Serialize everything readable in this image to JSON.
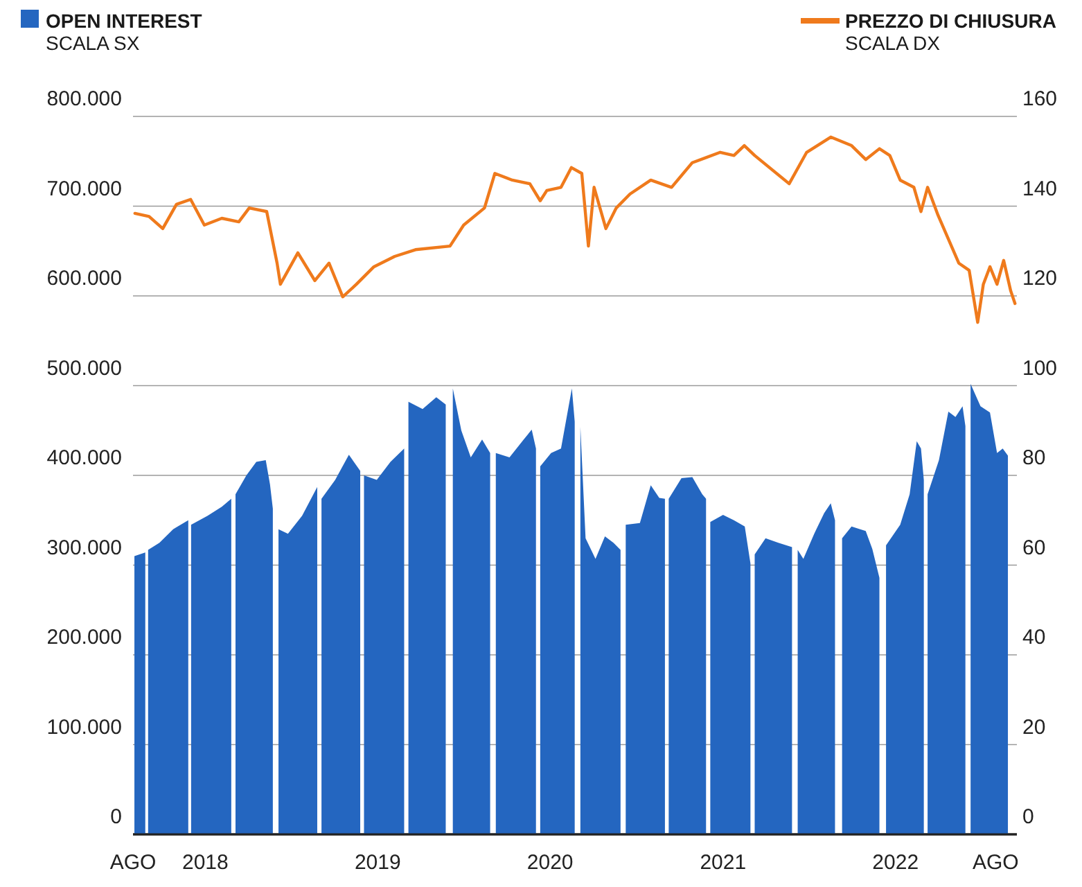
{
  "chart_data": {
    "type": "area",
    "ylabel": "SCALA SX",
    "y2label": "SCALA DX",
    "legend": "top",
    "grid": "y",
    "xlim": [
      "2017-08-01",
      "2022-09-15"
    ],
    "xticks": [
      {
        "value": "2017-08-01",
        "label": "AGO"
      },
      {
        "value": "2018-01-01",
        "label": "2018"
      },
      {
        "value": "2019-01-01",
        "label": "2019"
      },
      {
        "value": "2020-01-01",
        "label": "2020"
      },
      {
        "value": "2021-01-01",
        "label": "2021"
      },
      {
        "value": "2022-01-01",
        "label": "2022"
      },
      {
        "value": "2022-08-01",
        "label": "AGO"
      }
    ],
    "ylim": [
      0,
      800000
    ],
    "yticks": [
      0,
      {
        "value": 100000,
        "label": "100.000"
      },
      {
        "value": 200000,
        "label": "200.000"
      },
      {
        "value": 300000,
        "label": "300.000"
      },
      {
        "value": 400000,
        "label": "400.000"
      },
      {
        "value": 500000,
        "label": "500.000"
      },
      {
        "value": 600000,
        "label": "600.000"
      },
      {
        "value": 700000,
        "label": "700.000"
      },
      {
        "value": 800000,
        "label": "800.000"
      }
    ],
    "y2lim": [
      0,
      160
    ],
    "y2ticks": [
      0,
      20,
      40,
      60,
      80,
      100,
      120,
      140,
      160
    ],
    "series": [
      {
        "name": "OPEN INTEREST",
        "color": "#2466c0",
        "x": [
          "2017-08-04",
          "2017-08-27",
          "2017-08-30",
          "2017-09-02",
          "2017-09-26",
          "2017-10-25",
          "2017-11-26",
          "2017-11-29",
          "2017-12-02",
          "2018-01-06",
          "2018-02-05",
          "2018-02-25",
          "2018-02-28",
          "2018-03-06",
          "2018-03-29",
          "2018-04-19",
          "2018-05-09",
          "2018-05-18",
          "2018-05-24",
          "2018-05-30",
          "2018-06-05",
          "2018-06-25",
          "2018-07-25",
          "2018-08-26",
          "2018-09-01",
          "2018-09-04",
          "2018-10-03",
          "2018-11-01",
          "2018-11-25",
          "2018-12-01",
          "2018-12-03",
          "2018-12-30",
          "2019-01-28",
          "2019-02-26",
          "2019-03-01",
          "2019-03-07",
          "2019-04-06",
          "2019-05-05",
          "2019-05-25",
          "2019-05-31",
          "2019-06-09",
          "2019-06-27",
          "2019-07-17",
          "2019-08-10",
          "2019-08-27",
          "2019-09-02",
          "2019-09-08",
          "2019-10-07",
          "2019-11-06",
          "2019-11-23",
          "2019-12-02",
          "2019-12-05",
          "2019-12-11",
          "2020-01-03",
          "2020-01-24",
          "2020-02-16",
          "2020-02-22",
          "2020-02-28",
          "2020-03-05",
          "2020-03-16",
          "2020-04-06",
          "2020-04-26",
          "2020-05-14",
          "2020-05-29",
          "2020-06-04",
          "2020-06-09",
          "2020-07-09",
          "2020-08-01",
          "2020-08-19",
          "2020-08-31",
          "2020-09-05",
          "2020-09-08",
          "2020-10-05",
          "2020-10-28",
          "2020-11-18",
          "2020-11-26",
          "2020-12-02",
          "2020-12-05",
          "2021-01-01",
          "2021-01-24",
          "2021-02-16",
          "2021-02-28",
          "2021-03-03",
          "2021-03-09",
          "2021-04-01",
          "2021-04-28",
          "2021-05-27",
          "2021-05-30",
          "2021-06-08",
          "2021-06-20",
          "2021-07-13",
          "2021-08-03",
          "2021-08-17",
          "2021-08-26",
          "2021-09-01",
          "2021-09-10",
          "2021-09-30",
          "2021-10-30",
          "2021-11-13",
          "2021-11-28",
          "2021-12-07",
          "2021-12-12",
          "2022-01-11",
          "2022-01-31",
          "2022-02-15",
          "2022-02-24",
          "2022-03-02",
          "2022-03-05",
          "2022-03-10",
          "2022-04-03",
          "2022-04-23",
          "2022-05-08",
          "2022-05-23",
          "2022-05-29",
          "2022-05-31",
          "2022-06-09",
          "2022-06-30",
          "2022-07-20",
          "2022-08-04",
          "2022-08-16",
          "2022-08-27"
        ],
        "values": [
          310000,
          314000,
          null,
          317000,
          325000,
          340000,
          350000,
          null,
          345000,
          355000,
          365000,
          374000,
          null,
          379000,
          400000,
          415000,
          417000,
          390000,
          363000,
          null,
          340000,
          335000,
          355000,
          387000,
          null,
          374000,
          395000,
          423000,
          405000,
          null,
          400000,
          395000,
          415000,
          430000,
          null,
          482000,
          474000,
          487000,
          479000,
          null,
          497000,
          450000,
          420000,
          440000,
          425000,
          null,
          425000,
          420000,
          440000,
          451000,
          430000,
          null,
          410000,
          425000,
          430000,
          497000,
          460000,
          null,
          454000,
          330000,
          307000,
          332000,
          325000,
          317000,
          null,
          345000,
          347000,
          389000,
          375000,
          374000,
          null,
          374000,
          397000,
          398000,
          379000,
          374000,
          null,
          348000,
          356000,
          350000,
          343000,
          302000,
          null,
          312000,
          330000,
          325000,
          320000,
          null,
          317000,
          307000,
          335000,
          358000,
          369000,
          350000,
          null,
          330000,
          343000,
          338000,
          318000,
          286000,
          null,
          322000,
          345000,
          379000,
          438000,
          430000,
          395000,
          null,
          379000,
          417000,
          471000,
          465000,
          477000,
          455000,
          null,
          502000,
          477000,
          470000,
          425000,
          430000,
          422000
        ]
      },
      {
        "name": "PREZZO DI CHIUSURA",
        "type": "line",
        "axis": "y2",
        "color": "#ef7a1c",
        "x": [
          "2017-08-05",
          "2017-09-04",
          "2017-10-03",
          "2017-11-01",
          "2017-12-01",
          "2017-12-30",
          "2018-02-05",
          "2018-03-13",
          "2018-04-04",
          "2018-05-11",
          "2018-06-02",
          "2018-06-09",
          "2018-07-16",
          "2018-08-21",
          "2018-09-20",
          "2018-10-19",
          "2018-11-17",
          "2018-12-24",
          "2019-02-06",
          "2019-03-22",
          "2019-06-03",
          "2019-07-02",
          "2019-08-15",
          "2019-09-06",
          "2019-10-13",
          "2019-11-19",
          "2019-12-11",
          "2019-12-25",
          "2020-01-24",
          "2020-02-15",
          "2020-03-08",
          "2020-03-22",
          "2020-04-03",
          "2020-04-28",
          "2020-05-20",
          "2020-06-18",
          "2020-08-01",
          "2020-09-14",
          "2020-10-28",
          "2020-12-26",
          "2021-01-24",
          "2021-02-15",
          "2021-03-09",
          "2021-05-21",
          "2021-06-27",
          "2021-08-17",
          "2021-09-30",
          "2021-10-30",
          "2021-11-28",
          "2021-12-20",
          "2022-01-11",
          "2022-02-09",
          "2022-02-24",
          "2022-03-10",
          "2022-04-01",
          "2022-05-15",
          "2022-06-06",
          "2022-06-24",
          "2022-07-06",
          "2022-07-20",
          "2022-08-04",
          "2022-08-18",
          "2022-09-02",
          "2022-09-11"
        ],
        "values": [
          138.4,
          137.7,
          135,
          140.4,
          141.5,
          135.8,
          137.3,
          136.5,
          139.6,
          138.8,
          127.3,
          122.6,
          129.6,
          123.4,
          127.3,
          119.8,
          122.6,
          126.5,
          128.8,
          130.3,
          131.1,
          135.8,
          139.6,
          147.3,
          145.8,
          145,
          141.2,
          143.5,
          144.2,
          148.6,
          147.3,
          131.1,
          144.2,
          135,
          139.6,
          142.7,
          145.8,
          144.2,
          149.7,
          152,
          151.3,
          153.5,
          151.3,
          145,
          152,
          155.4,
          153.5,
          150.4,
          152.8,
          151.3,
          145.8,
          144.2,
          138.8,
          144.2,
          138,
          127.3,
          125.7,
          114.1,
          122.6,
          126.5,
          122.6,
          127.9,
          121.1,
          118.3
        ]
      }
    ]
  }
}
